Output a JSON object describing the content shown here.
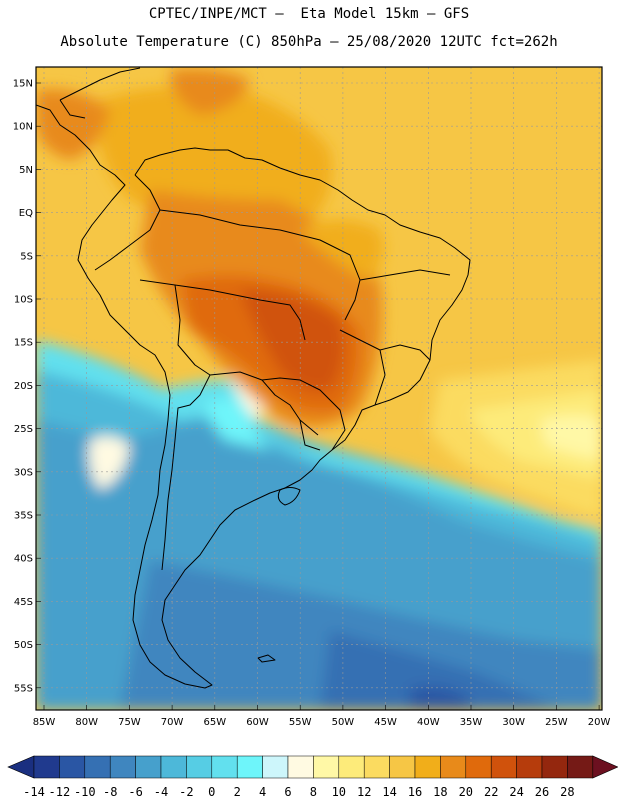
{
  "header": {
    "line1": "CPTEC/INPE/MCT –  Eta Model 15km – GFS",
    "line2": "Absolute Temperature (C) 850hPa – 25/08/2020 12UTC fct=262h"
  },
  "lat_labels": [
    "15N",
    "10N",
    "5N",
    "EQ",
    "5S",
    "10S",
    "15S",
    "20S",
    "25S",
    "30S",
    "35S",
    "40S",
    "45S",
    "50S",
    "55S"
  ],
  "lon_labels": [
    "85W",
    "80W",
    "75W",
    "70W",
    "65W",
    "60W",
    "55W",
    "50W",
    "45W",
    "40W",
    "35W",
    "30W",
    "25W",
    "20W"
  ],
  "colorbar": {
    "labels": [
      "-14",
      "-12",
      "-10",
      "-8",
      "-6",
      "-4",
      "-2",
      "0",
      "2",
      "4",
      "6",
      "8",
      "10",
      "12",
      "14",
      "16",
      "18",
      "20",
      "22",
      "24",
      "26",
      "28"
    ],
    "colors": [
      "#203a8e",
      "#2a56a4",
      "#3570b3",
      "#3f86bf",
      "#46a0cc",
      "#4db8d9",
      "#56cde4",
      "#62e0ee",
      "#6ef5fa",
      "#cdf6fb",
      "#fffae2",
      "#fff8a6",
      "#fdeb7a",
      "#fbdb60",
      "#f6c645",
      "#f1ae1a",
      "#e88a1a",
      "#e06a0c",
      "#d0520c",
      "#b63c0c",
      "#94270e",
      "#751a16"
    ],
    "low_color": "#1a2f80",
    "high_color": "#6c1020"
  },
  "palette": {
    "ocean_south": "#46a0cc",
    "ocean_deep": "#3570b3",
    "cold_air": "#62e0ee",
    "warm_tropics": "#f6c645",
    "hot_core": "#e06a0c",
    "hottest": "#d0520c"
  }
}
